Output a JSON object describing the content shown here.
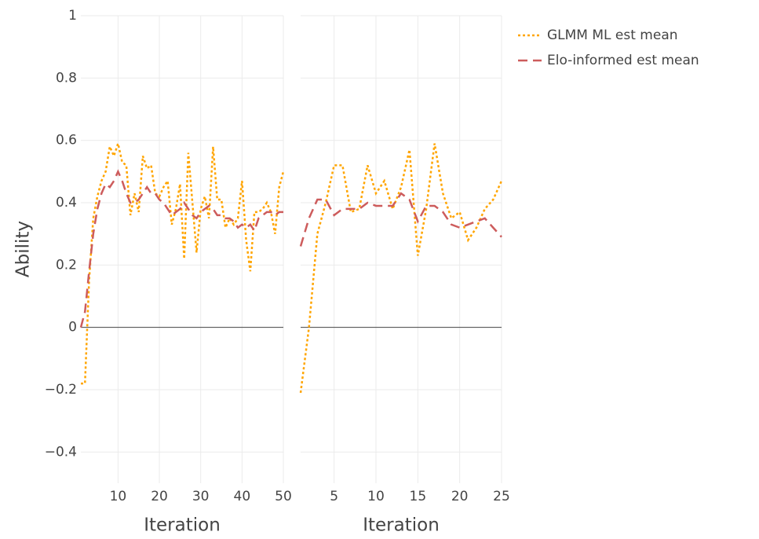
{
  "chart_data": [
    {
      "type": "line",
      "xlabel": "Iteration",
      "ylabel": "Ability",
      "x": [
        1,
        2,
        3,
        4,
        5,
        6,
        7,
        8,
        9,
        10,
        11,
        12,
        13,
        14,
        15,
        16,
        17,
        18,
        19,
        20,
        21,
        22,
        23,
        24,
        25,
        26,
        27,
        28,
        29,
        30,
        31,
        32,
        33,
        34,
        35,
        36,
        37,
        38,
        39,
        40,
        41,
        42,
        43,
        44,
        45,
        46,
        47,
        48,
        49,
        50
      ],
      "xlim": [
        1,
        50
      ],
      "xticks": [
        10,
        20,
        30,
        40,
        50
      ],
      "ylim": [
        -0.5,
        1
      ],
      "yticks": [
        {
          "value": -0.4,
          "label": "−0.4"
        },
        {
          "value": -0.2,
          "label": "−0.2"
        },
        0,
        0.2,
        0.4,
        0.6,
        0.8,
        1
      ],
      "grid": true,
      "series": [
        {
          "name": "GLMM ML est mean",
          "color": "#ffa500",
          "dash": "dot",
          "values": [
            -0.18,
            -0.18,
            0.15,
            0.35,
            0.42,
            0.47,
            0.5,
            0.58,
            0.55,
            0.59,
            0.53,
            0.52,
            0.36,
            0.43,
            0.37,
            0.55,
            0.51,
            0.52,
            0.43,
            0.42,
            0.45,
            0.47,
            0.33,
            0.38,
            0.46,
            0.22,
            0.56,
            0.4,
            0.24,
            0.38,
            0.42,
            0.35,
            0.58,
            0.41,
            0.41,
            0.32,
            0.35,
            0.33,
            0.35,
            0.47,
            0.28,
            0.18,
            0.37,
            0.37,
            0.38,
            0.4,
            0.37,
            0.3,
            0.45,
            0.5
          ]
        },
        {
          "name": "Elo-informed est mean",
          "color": "#cd5c5c",
          "dash": "dash",
          "values": [
            0,
            0.05,
            0.18,
            0.3,
            0.38,
            0.43,
            0.46,
            0.45,
            0.47,
            0.5,
            0.47,
            0.43,
            0.4,
            0.4,
            0.41,
            0.43,
            0.45,
            0.43,
            0.43,
            0.41,
            0.4,
            0.38,
            0.36,
            0.37,
            0.38,
            0.4,
            0.38,
            0.36,
            0.35,
            0.37,
            0.38,
            0.39,
            0.38,
            0.36,
            0.36,
            0.35,
            0.35,
            0.34,
            0.32,
            0.33,
            0.32,
            0.33,
            0.31,
            0.35,
            0.36,
            0.37,
            0.37,
            0.36,
            0.37,
            0.37
          ]
        }
      ]
    },
    {
      "type": "line",
      "xlabel": "Iteration",
      "x": [
        1,
        2,
        3,
        4,
        5,
        6,
        7,
        8,
        9,
        10,
        11,
        12,
        13,
        14,
        15,
        16,
        17,
        18,
        19,
        20,
        21,
        22,
        23,
        24,
        25
      ],
      "xlim": [
        1,
        25
      ],
      "xticks": [
        5,
        10,
        15,
        20,
        25
      ],
      "grid": true,
      "series": [
        {
          "color": "#ffa500",
          "dash": "dot",
          "values": [
            -0.21,
            0,
            0.3,
            0.4,
            0.52,
            0.52,
            0.37,
            0.38,
            0.52,
            0.43,
            0.47,
            0.38,
            0.45,
            0.57,
            0.23,
            0.38,
            0.59,
            0.43,
            0.35,
            0.37,
            0.28,
            0.32,
            0.38,
            0.41,
            0.47
          ]
        },
        {
          "color": "#cd5c5c",
          "dash": "dash",
          "values": [
            0.26,
            0.35,
            0.41,
            0.41,
            0.36,
            0.38,
            0.38,
            0.38,
            0.4,
            0.39,
            0.39,
            0.39,
            0.43,
            0.41,
            0.34,
            0.39,
            0.39,
            0.37,
            0.33,
            0.32,
            0.33,
            0.34,
            0.35,
            0.32,
            0.29
          ]
        }
      ]
    }
  ]
}
